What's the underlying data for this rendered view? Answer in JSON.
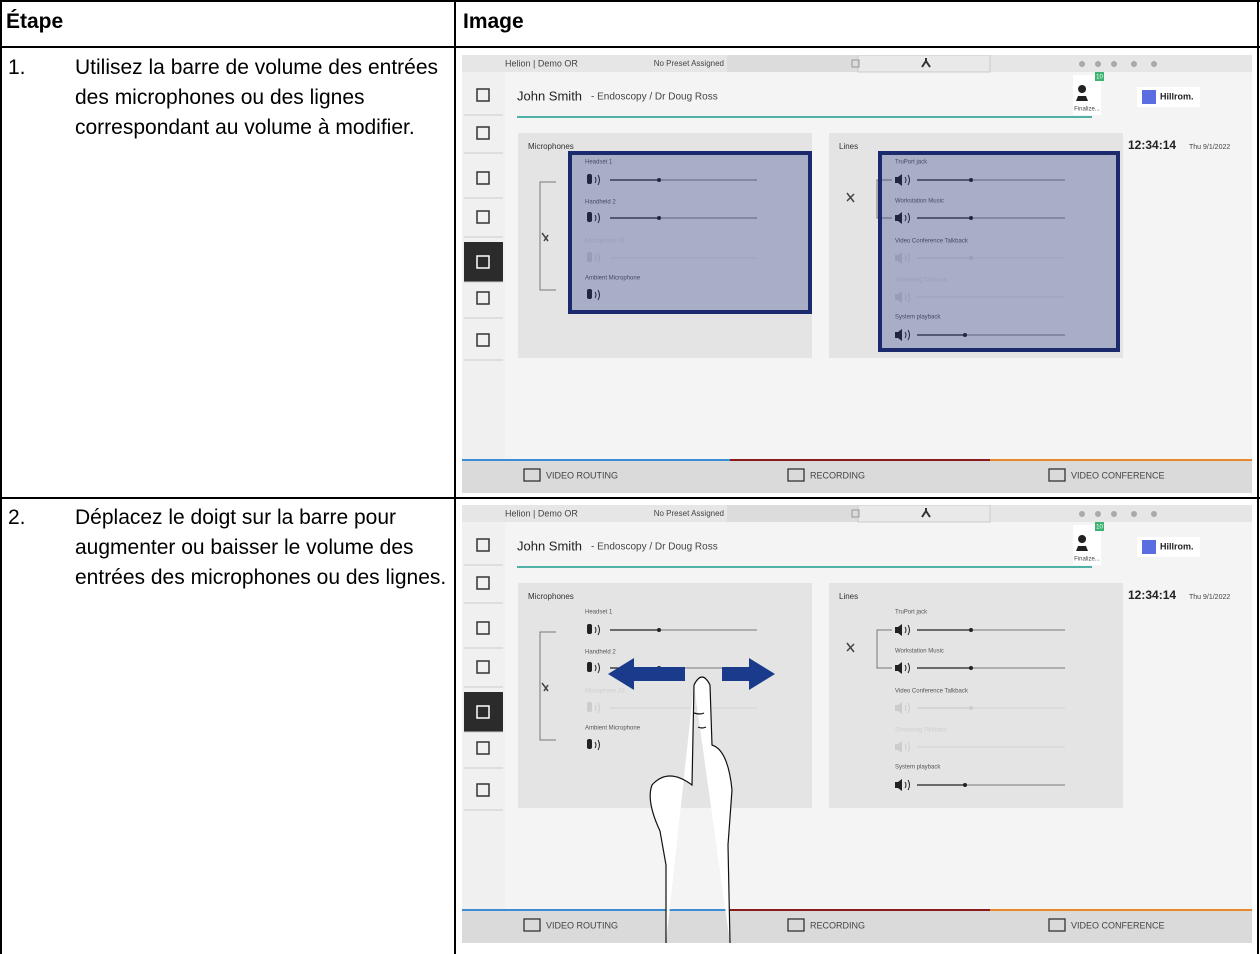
{
  "table": {
    "headers": [
      "Étape",
      "Image"
    ],
    "rows": [
      {
        "step": "1.",
        "text": "Utilisez la barre de volume des entrées des microphones ou des lignes correspondant au volume à modifier."
      },
      {
        "step": "2.",
        "text": "Déplacez le doigt sur la barre pour augmenter ou baisser le volume des entrées des microphones ou des lignes."
      }
    ]
  },
  "screen": {
    "location": "Helion | Demo OR",
    "preset": "No Preset Assigned",
    "patient_name": "John Smith",
    "patient_details": "- Endoscopy / Dr Doug Ross",
    "finalize": "Finalize...",
    "badge": "10",
    "brand": "Hillrom.",
    "time": "12:34:14",
    "date": "Thu 9/1/2022",
    "microphones": {
      "title": "Microphones",
      "inputs": [
        "Headset 1",
        "Handheld 2",
        "Microphone #3",
        "Ambient Microphone"
      ]
    },
    "lines": {
      "title": "Lines",
      "inputs": [
        "TruPort jack",
        "Workstation Music",
        "Video Conference Talkback",
        "Streaming Talkback",
        "System playback"
      ]
    },
    "tabs": [
      "VIDEO ROUTING",
      "RECORDING",
      "VIDEO CONFERENCE"
    ]
  }
}
